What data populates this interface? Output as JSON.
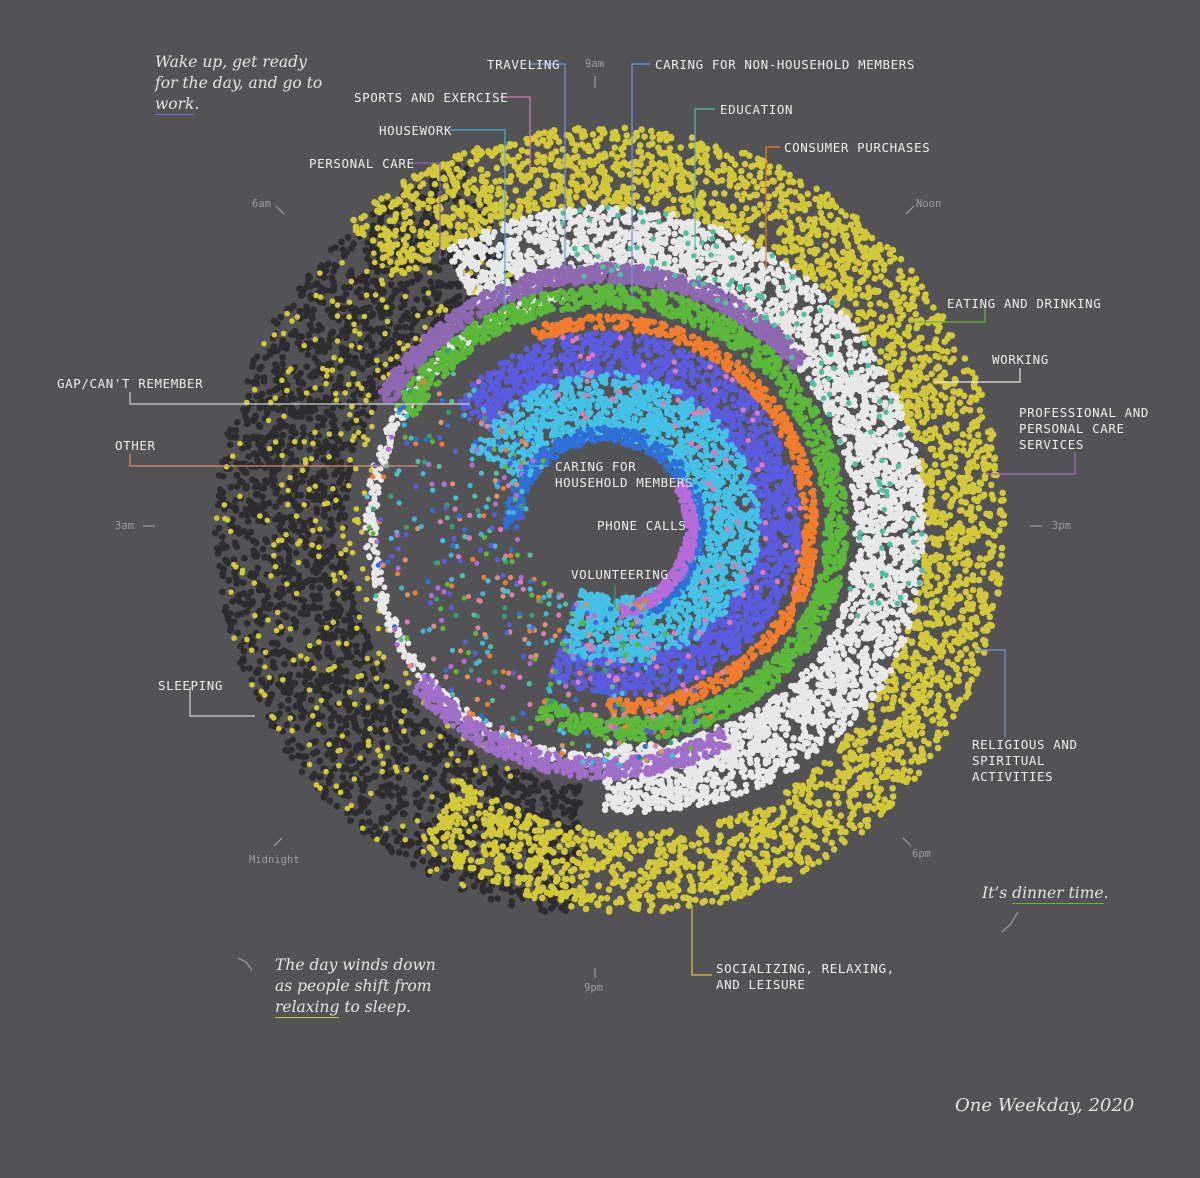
{
  "chart_data": {
    "type": "radial-dot",
    "clock_labels": [
      "9am",
      "Noon",
      "3pm",
      "6pm",
      "9pm",
      "Midnight",
      "3am",
      "6am"
    ],
    "categories": [
      {
        "name": "SLEEPING",
        "color": "#2d2d2f"
      },
      {
        "name": "PERSONAL CARE",
        "color": "#8e68b0"
      },
      {
        "name": "HOUSEWORK",
        "color": "#3fb5d9"
      },
      {
        "name": "TRAVELING",
        "color": "#2f70d8"
      },
      {
        "name": "SPORTS AND EXERCISE",
        "color": "#e07ab2"
      },
      {
        "name": "CARING FOR NON-HOUSEHOLD MEMBERS",
        "color": "#5b5be0"
      },
      {
        "name": "EDUCATION",
        "color": "#52c0a0"
      },
      {
        "name": "CONSUMER PURCHASES",
        "color": "#f07c2d"
      },
      {
        "name": "EATING AND DRINKING",
        "color": "#5cb83a"
      },
      {
        "name": "WORKING",
        "color": "#e8e8e8"
      },
      {
        "name": "PROFESSIONAL AND\nPERSONAL CARE\nSERVICES",
        "color": "#a06fc8"
      },
      {
        "name": "CARING FOR\nHOUSEHOLD MEMBERS",
        "color": "#45c1e6"
      },
      {
        "name": "PHONE CALLS",
        "color": "#b76bd8"
      },
      {
        "name": "VOLUNTEERING",
        "color": "#37a070"
      },
      {
        "name": "RELIGIOUS AND\nSPIRITUAL\nACTIVITIES",
        "color": "#6f98e0"
      },
      {
        "name": "SOCIALIZING, RELAXING,\nAND LEISURE",
        "color": "#d3c73a"
      },
      {
        "name": "GAP/CAN'T REMEMBER",
        "color": "#e8e8e8"
      },
      {
        "name": "OTHER",
        "color": "#e0906a"
      }
    ],
    "annotations": [
      {
        "id": "morning",
        "pre": "Wake up, get ready\nfor the day, and go to\n",
        "u": "work",
        "post": ".",
        "color": "#6a76d8"
      },
      {
        "id": "dinner",
        "pre": "It’s ",
        "u": "dinner time",
        "post": ".",
        "color": "#5cb83a"
      },
      {
        "id": "night",
        "pre": "The day winds down\nas people shift from\n",
        "u": "relaxing",
        "post": " to sleep.",
        "color": "#d3c73a"
      }
    ]
  },
  "footer": "One Weekday, 2020"
}
